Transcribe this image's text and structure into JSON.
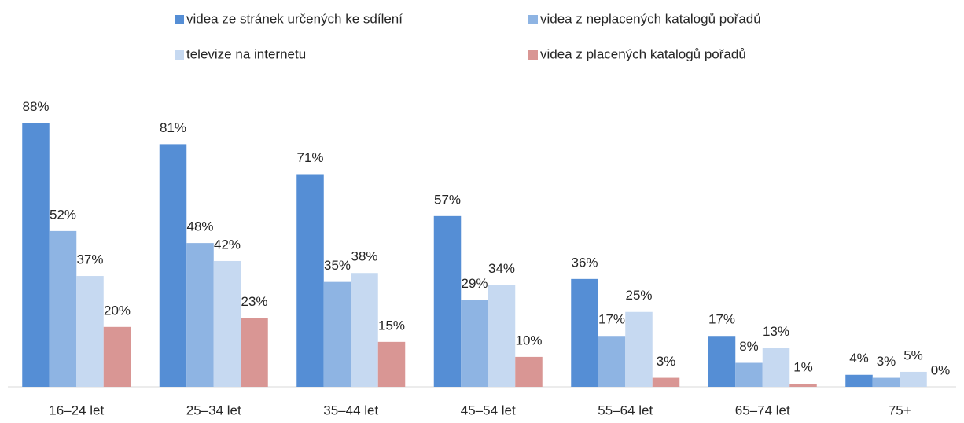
{
  "chart_data": {
    "type": "bar",
    "categories": [
      "16–24 let",
      "25–34 let",
      "35–44 let",
      "45–54 let",
      "55–64 let",
      "65–74 let",
      "75+"
    ],
    "series": [
      {
        "name": "videa ze stránek určených ke sdílení",
        "color": "#558ed5",
        "values": [
          88,
          81,
          71,
          57,
          36,
          17,
          4
        ],
        "value_labels": [
          "88%",
          "81%",
          "71%",
          "57%",
          "36%",
          "17%",
          "4%"
        ]
      },
      {
        "name": "videa z neplacených katalogů pořadů",
        "color": "#8eb4e3",
        "values": [
          52,
          48,
          35,
          29,
          17,
          8,
          3
        ],
        "value_labels": [
          "52%",
          "48%",
          "35%",
          "29%",
          "17%",
          "8%",
          "3%"
        ]
      },
      {
        "name": "televize na internetu",
        "color": "#c6d9f1",
        "values": [
          37,
          42,
          38,
          34,
          25,
          13,
          5
        ],
        "value_labels": [
          "37%",
          "42%",
          "38%",
          "34%",
          "25%",
          "13%",
          "5%"
        ]
      },
      {
        "name": "videa z placených katalogů pořadů",
        "color": "#d99694",
        "values": [
          20,
          23,
          15,
          10,
          3,
          1,
          0
        ],
        "value_labels": [
          "20%",
          "23%",
          "15%",
          "10%",
          "3%",
          "1%",
          "0%"
        ]
      }
    ],
    "ylim": [
      0,
      100
    ],
    "legend": "top"
  }
}
